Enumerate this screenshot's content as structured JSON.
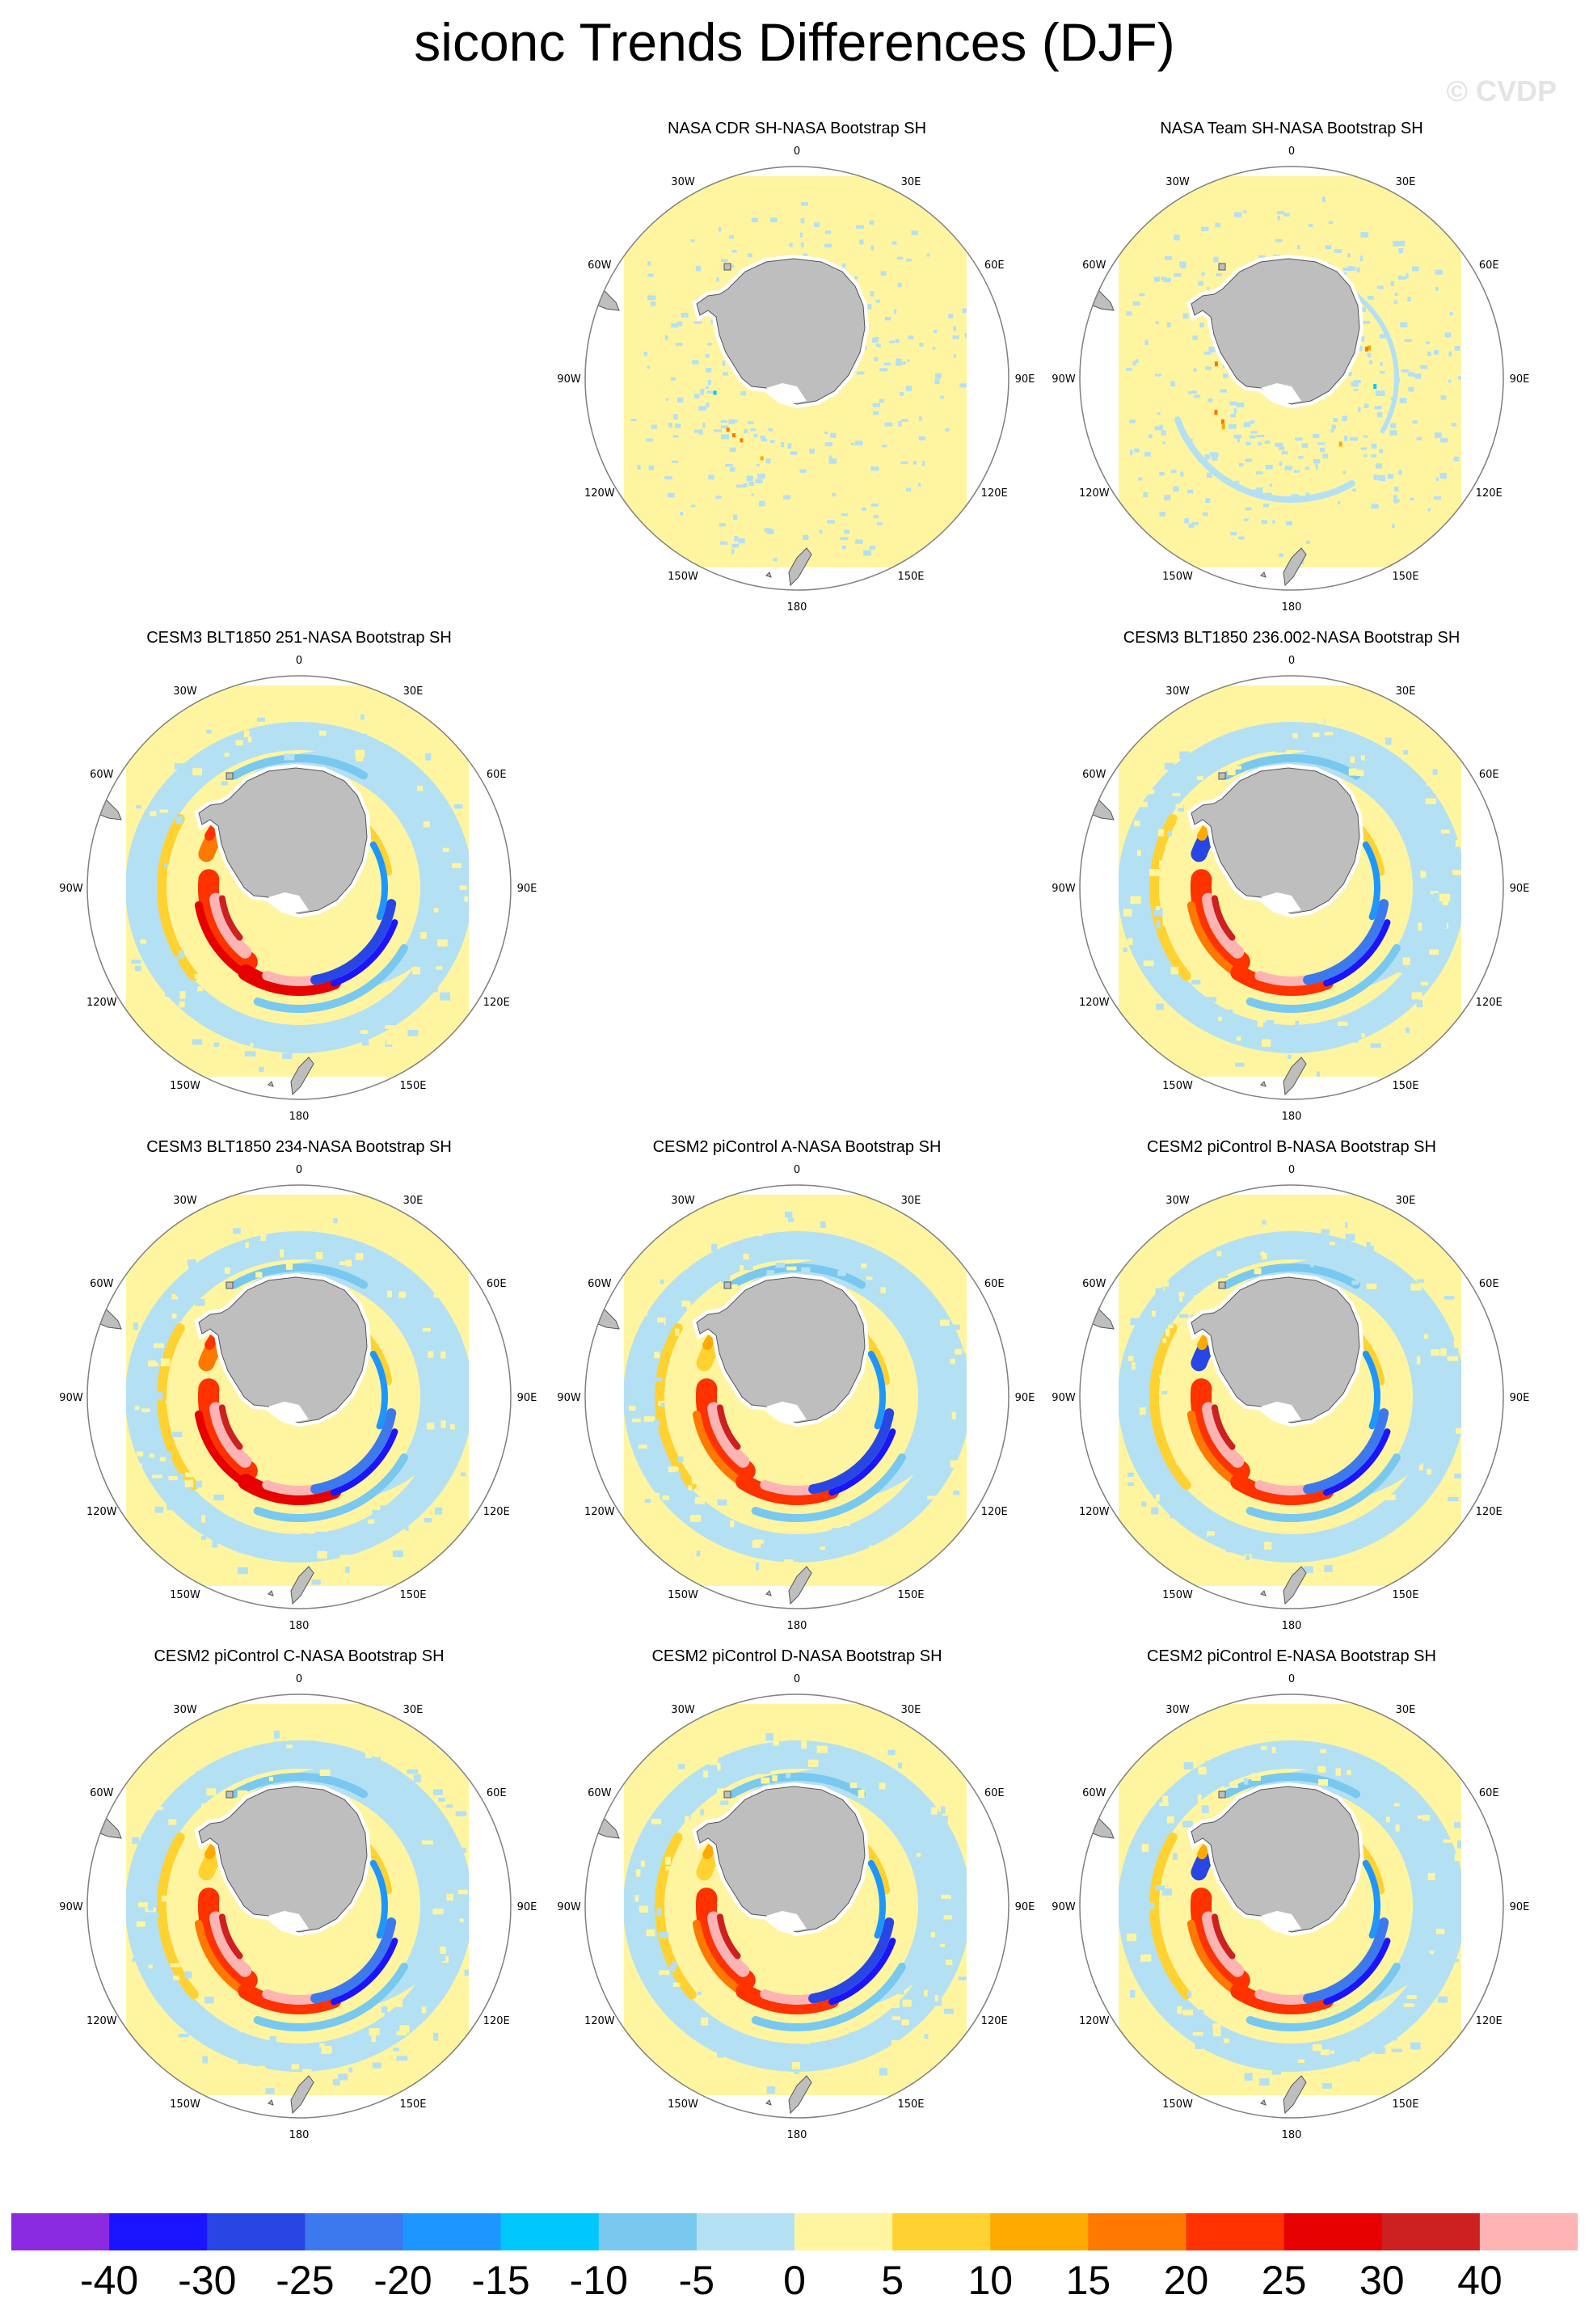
{
  "title": "siconc Trends Differences (DJF)",
  "copyright": "© CVDP",
  "map_labels": {
    "lon_0": "0",
    "lon_30e": "30E",
    "lon_60e": "60E",
    "lon_90e": "90E",
    "lon_120e": "120E",
    "lon_150e": "150E",
    "lon_180": "180",
    "lon_150w": "150W",
    "lon_120w": "120W",
    "lon_90w": "90W",
    "lon_60w": "60W",
    "lon_30w": "30W"
  },
  "panels": [
    {
      "id": "p1",
      "title": "NASA CDR SH-NASA Bootstrap SH",
      "pattern": "obs1"
    },
    {
      "id": "p2",
      "title": "NASA Team SH-NASA Bootstrap SH",
      "pattern": "obs2"
    },
    {
      "id": "p3",
      "title": "CESM3 BLT1850 251-NASA Bootstrap SH",
      "pattern": "model_warm"
    },
    {
      "id": "p4",
      "title": "CESM3 BLT1850 236.002-NASA Bootstrap SH",
      "pattern": "model_mixed"
    },
    {
      "id": "p5",
      "title": "CESM3 BLT1850 234-NASA Bootstrap SH",
      "pattern": "model_warm"
    },
    {
      "id": "p6",
      "title": "CESM2 piControl A-NASA Bootstrap SH",
      "pattern": "model_mixed"
    },
    {
      "id": "p7",
      "title": "CESM2 piControl B-NASA Bootstrap SH",
      "pattern": "model_mixed"
    },
    {
      "id": "p8",
      "title": "CESM2 piControl C-NASA Bootstrap SH",
      "pattern": "model_mixed"
    },
    {
      "id": "p9",
      "title": "CESM2 piControl D-NASA Bootstrap SH",
      "pattern": "model_mixed"
    },
    {
      "id": "p10",
      "title": "CESM2 piControl E-NASA Bootstrap SH",
      "pattern": "model_mixed"
    }
  ],
  "colorbar": {
    "colors": [
      "#8a2be2",
      "#1a14ff",
      "#2846e4",
      "#3c78ee",
      "#1e96ff",
      "#00c8ff",
      "#78c8f0",
      "#b4e0f4",
      "#fff5a0",
      "#ffd232",
      "#ffaa00",
      "#ff7800",
      "#ff3200",
      "#e60000",
      "#cd2020",
      "#ffb4b4"
    ],
    "labels": [
      "-40",
      "-30",
      "-25",
      "-20",
      "-15",
      "-10",
      "-5",
      "0",
      "5",
      "10",
      "15",
      "20",
      "25",
      "30",
      "40"
    ]
  },
  "colors": {
    "land": "#bebebe",
    "background": "#ffffff",
    "ring": "#808080"
  }
}
